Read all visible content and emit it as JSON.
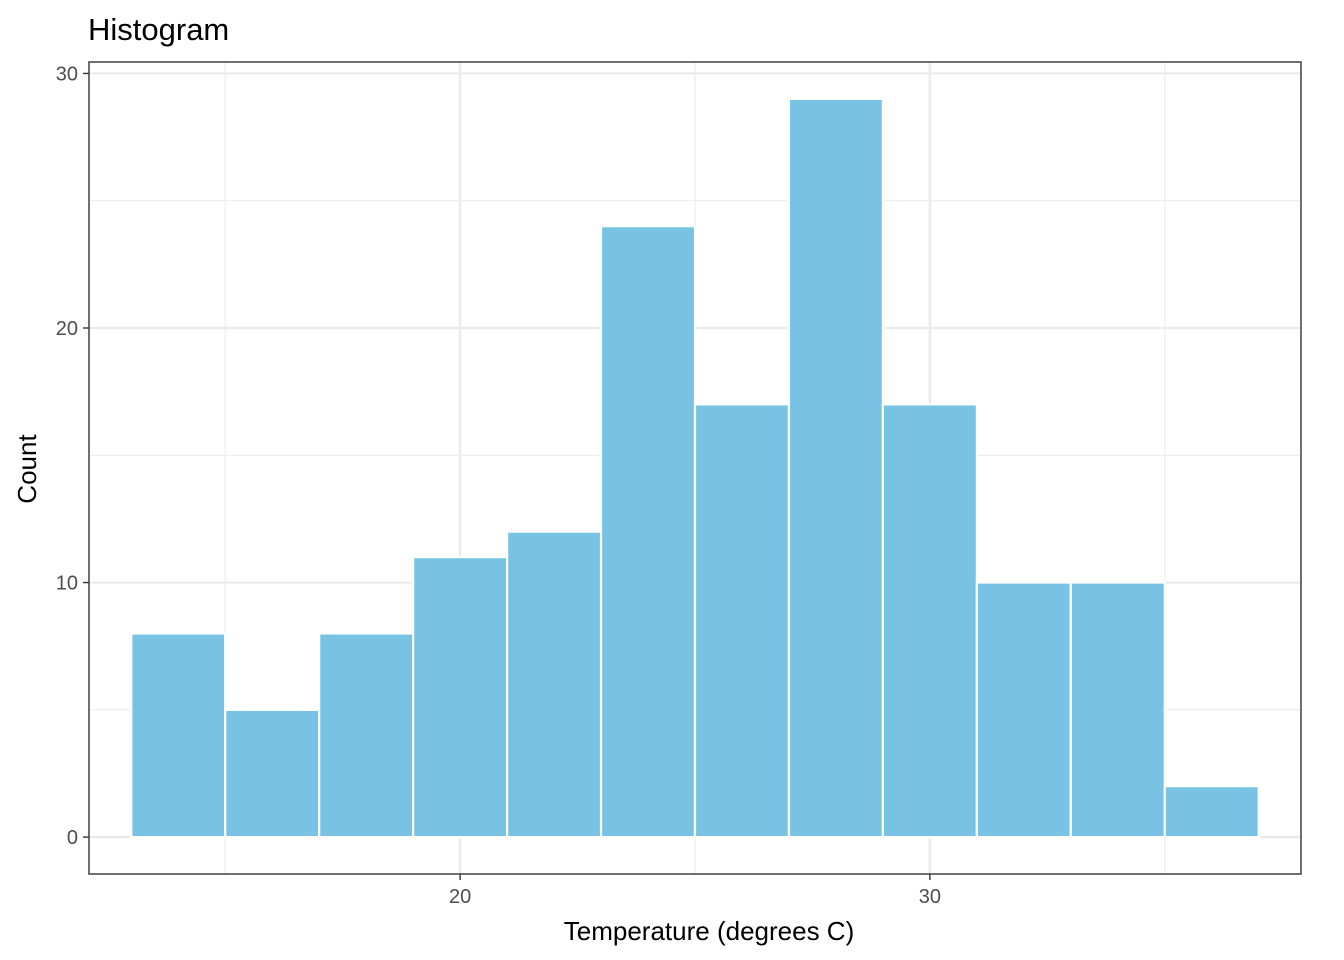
{
  "chart_data": {
    "type": "bar",
    "title": "Histogram",
    "xlabel": "Temperature (degrees C)",
    "ylabel": "Count",
    "bin_edges": [
      13,
      15,
      17,
      19,
      21,
      23,
      25,
      27,
      29,
      31,
      33,
      35,
      37
    ],
    "values": [
      8,
      5,
      8,
      11,
      12,
      24,
      17,
      29,
      17,
      10,
      10,
      2
    ],
    "xlim": [
      12.1,
      37.9
    ],
    "ylim": [
      -1.45,
      30.45
    ],
    "x_ticks": [
      20,
      30
    ],
    "y_ticks": [
      0,
      10,
      20,
      30
    ],
    "x_minor_ticks": [
      15,
      25,
      35
    ],
    "y_minor_ticks": [
      5,
      15,
      25
    ],
    "grid": true,
    "colors": {
      "bar_fill": "#78c2e4",
      "bar_edge": "#ffffff",
      "grid": "#ebebeb",
      "border": "#333333"
    }
  }
}
